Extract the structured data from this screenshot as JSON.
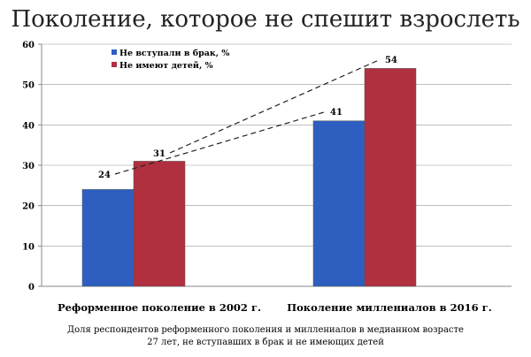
{
  "chart_data": {
    "type": "bar",
    "title": "Поколение, которое не спешит взрослеть",
    "categories": [
      "Реформенное поколение в 2002 г.",
      "Поколение миллениалов в 2016 г."
    ],
    "series": [
      {
        "name": "Не вступали в брак, %",
        "color": "#2e5fc0",
        "values": [
          24,
          41
        ]
      },
      {
        "name": "Не имеют детей, %",
        "color": "#b03040",
        "values": [
          31,
          54
        ]
      }
    ],
    "ylim": [
      0,
      60
    ],
    "yticks": [
      0,
      10,
      20,
      30,
      40,
      50,
      60
    ],
    "grid": true,
    "legend": "top-left",
    "annotations": [
      "Доля респондентов реформенного поколения и миллениалов в медианном возрасте",
      "27 лет, не вступавших в брак и не имеющих детей"
    ],
    "trend_lines": "dashed lines connecting 2002 and 2016 values of each series"
  }
}
